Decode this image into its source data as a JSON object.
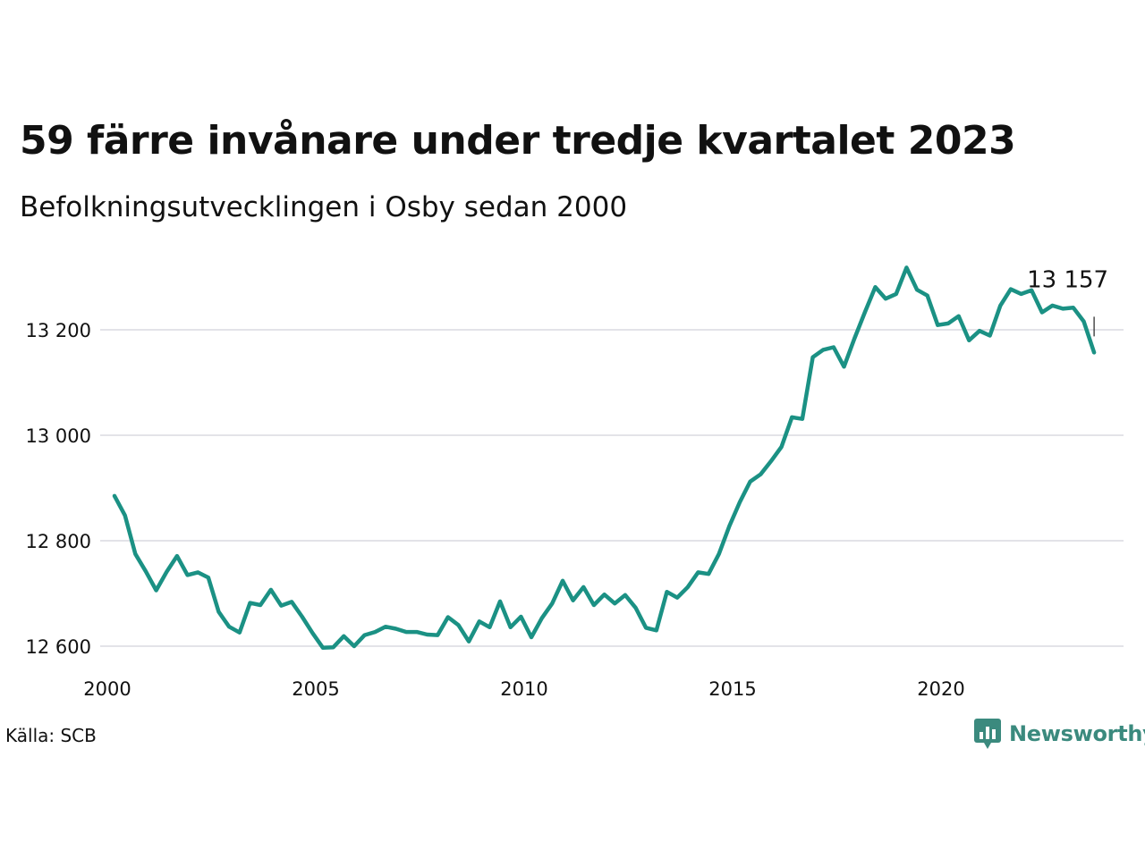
{
  "header": {
    "title": "59 färre invånare under tredje kvartalet 2023",
    "subtitle": "Befolkningsutvecklingen i Osby sedan 2000"
  },
  "footer": {
    "source": "Källa: SCB",
    "brand": "Newsworthy"
  },
  "colors": {
    "line": "#1b9184",
    "grid": "#e3e3e8",
    "brand": "#3b8a7e"
  },
  "chart_data": {
    "type": "line",
    "title": "59 färre invånare under tredje kvartalet 2023",
    "subtitle": "Befolkningsutvecklingen i Osby sedan 2000",
    "xlabel": "",
    "ylabel": "",
    "x_ticks": [
      2000,
      2005,
      2010,
      2015,
      2020
    ],
    "x_tick_labels": [
      "2000",
      "2005",
      "2010",
      "2015",
      "2020"
    ],
    "y_ticks": [
      12600,
      12800,
      13000,
      13200
    ],
    "y_tick_labels": [
      "12 600",
      "12 800",
      "13 000",
      "13 200"
    ],
    "xlim": [
      2000,
      2024.25
    ],
    "ylim": [
      12550,
      13340
    ],
    "grid": "horizontal",
    "end_label": "13 157",
    "series": [
      {
        "frequency": "quarterly",
        "start": "2000Q1",
        "values": [
          12885,
          12848,
          12775,
          12742,
          12706,
          12741,
          12771,
          12735,
          12740,
          12730,
          12665,
          12637,
          12626,
          12682,
          12678,
          12707,
          12677,
          12684,
          12656,
          12625,
          12597,
          12598,
          12619,
          12600,
          12621,
          12627,
          12637,
          12633,
          12627,
          12627,
          12622,
          12621,
          12655,
          12640,
          12609,
          12647,
          12636,
          12685,
          12636,
          12656,
          12617,
          12653,
          12681,
          12724,
          12687,
          12712,
          12678,
          12698,
          12681,
          12697,
          12673,
          12635,
          12630,
          12703,
          12692,
          12712,
          12740,
          12737,
          12775,
          12828,
          12873,
          12912,
          12926,
          12951,
          12978,
          13034,
          13031,
          13148,
          13162,
          13167,
          13130,
          13183,
          13233,
          13281,
          13259,
          13268,
          13318,
          13276,
          13265,
          13209,
          13212,
          13226,
          13180,
          13198,
          13189,
          13246,
          13277,
          13268,
          13275,
          13233,
          13246,
          13240,
          13242,
          13216,
          13157
        ]
      }
    ]
  }
}
